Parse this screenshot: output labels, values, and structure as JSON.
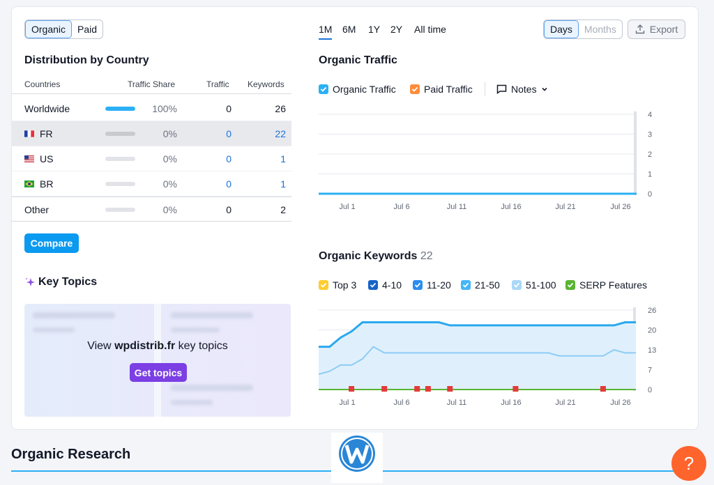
{
  "toggle": {
    "organic": "Organic",
    "paid": "Paid"
  },
  "distribution": {
    "title": "Distribution by Country",
    "headers": [
      "Countries",
      "Traffic Share",
      "Traffic",
      "Keywords"
    ],
    "rows": [
      {
        "name": "Worldwide",
        "share": "100%",
        "share_fraction": 1.0,
        "traffic": "0",
        "keywords": "26"
      },
      {
        "name": "FR",
        "share": "0%",
        "share_fraction": 0,
        "traffic": "0",
        "keywords": "22"
      },
      {
        "name": "US",
        "share": "0%",
        "share_fraction": 0,
        "traffic": "0",
        "keywords": "1"
      },
      {
        "name": "BR",
        "share": "0%",
        "share_fraction": 0,
        "traffic": "0",
        "keywords": "1"
      },
      {
        "name": "Other",
        "share": "0%",
        "share_fraction": 0,
        "traffic": "0",
        "keywords": "2"
      }
    ],
    "compare_label": "Compare"
  },
  "key_topics": {
    "title": "Key Topics",
    "view_prefix": "View ",
    "domain": "wpdistrib.fr",
    "view_suffix": " key topics",
    "button": "Get topics"
  },
  "periods": [
    "1M",
    "6M",
    "1Y",
    "2Y",
    "All time"
  ],
  "granularity": {
    "days": "Days",
    "months": "Months"
  },
  "export_label": "Export",
  "organic_traffic": {
    "title": "Organic Traffic",
    "legend": [
      {
        "label": "Organic Traffic",
        "color": "#2bb0f5"
      },
      {
        "label": "Paid Traffic",
        "color": "#ff8c3b"
      }
    ],
    "notes_label": "Notes"
  },
  "organic_keywords": {
    "title": "Organic Keywords",
    "count": "22",
    "legend": [
      {
        "label": "Top 3",
        "color": "#ffcc33"
      },
      {
        "label": "4-10",
        "color": "#1863c9"
      },
      {
        "label": "11-20",
        "color": "#2a8df0"
      },
      {
        "label": "21-50",
        "color": "#45b6f5"
      },
      {
        "label": "51-100",
        "color": "#a9d8f8"
      },
      {
        "label": "SERP Features",
        "color": "#59b432"
      }
    ]
  },
  "chart_data": [
    {
      "type": "line",
      "x_ticks": [
        "Jul 1",
        "Jul 6",
        "Jul 11",
        "Jul 16",
        "Jul 21",
        "Jul 26"
      ],
      "y_ticks": [
        "4",
        "3",
        "2",
        "1",
        "0"
      ],
      "ylim": [
        0,
        4
      ],
      "series": [
        {
          "name": "Organic Traffic",
          "values": [
            0,
            0,
            0,
            0,
            0,
            0
          ]
        }
      ]
    },
    {
      "type": "area",
      "x_ticks": [
        "Jul 1",
        "Jul 6",
        "Jul 11",
        "Jul 16",
        "Jul 21",
        "Jul 26"
      ],
      "y_ticks": [
        "26",
        "20",
        "13",
        "7",
        "0"
      ],
      "ylim": [
        0,
        26
      ],
      "series": [
        {
          "name": "51-100",
          "values": [
            14,
            14,
            17,
            19,
            22,
            22,
            22,
            22,
            22,
            22,
            22,
            22,
            21,
            21,
            21,
            21,
            21,
            21,
            21,
            21,
            21,
            21,
            21,
            21,
            21,
            21,
            21,
            21,
            22,
            22
          ]
        },
        {
          "name": "21-50",
          "values": [
            5,
            6,
            8,
            8,
            10,
            14,
            12,
            12,
            12,
            12,
            12,
            12,
            12,
            12,
            12,
            12,
            12,
            12,
            12,
            12,
            12,
            12,
            11,
            11,
            11,
            11,
            11,
            13,
            12,
            12
          ]
        },
        {
          "name": "SERP Features",
          "values": [
            0,
            0,
            0,
            0,
            0,
            0,
            0,
            0,
            0,
            0,
            0,
            0,
            0,
            0,
            0,
            0,
            0,
            0,
            0,
            0,
            0,
            0,
            0,
            0,
            0,
            0,
            0,
            0,
            0,
            0
          ]
        }
      ],
      "note_markers": [
        3,
        6,
        9,
        10,
        12,
        18,
        26
      ]
    }
  ],
  "organic_research": {
    "title": "Organic Research"
  },
  "help_label": "?"
}
